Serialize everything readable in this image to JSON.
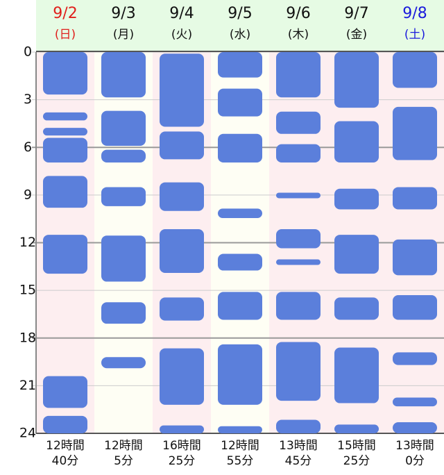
{
  "chart_data": {
    "type": "range",
    "ylim": [
      0,
      24
    ],
    "y_inverted": true,
    "yticks": [
      0,
      3,
      6,
      9,
      12,
      15,
      18,
      21,
      24
    ],
    "major_yticks": [
      6,
      12,
      18
    ],
    "bar_color": "#5b7fdb",
    "header_color": "#e6fbe4",
    "days": [
      {
        "date": "9/2",
        "weekday": "(日)",
        "label_color": "#e0201c",
        "background": "#fdeef0",
        "total": [
          "12時間",
          "40分"
        ],
        "sleep": [
          [
            0,
            2.67
          ],
          [
            3.8,
            4.3
          ],
          [
            4.77,
            5.25
          ],
          [
            5.4,
            6.95
          ],
          [
            7.8,
            9.8
          ],
          [
            11.5,
            13.95
          ],
          [
            20.4,
            22.4
          ],
          [
            22.9,
            24
          ]
        ]
      },
      {
        "date": "9/3",
        "weekday": "(月)",
        "label_color": "#111111",
        "background": "#fefef4",
        "total": [
          "12時間",
          "5分"
        ],
        "sleep": [
          [
            0,
            2.85
          ],
          [
            3.7,
            5.9
          ],
          [
            6.15,
            6.95
          ],
          [
            8.5,
            9.7
          ],
          [
            11.55,
            14.45
          ],
          [
            15.75,
            17.1
          ],
          [
            19.2,
            19.9
          ]
        ]
      },
      {
        "date": "9/4",
        "weekday": "(火)",
        "label_color": "#111111",
        "background": "#fdeef0",
        "total": [
          "16時間",
          "25分"
        ],
        "sleep": [
          [
            0.1,
            4.7
          ],
          [
            5.0,
            6.75
          ],
          [
            8.2,
            10.0
          ],
          [
            11.15,
            13.9
          ],
          [
            15.45,
            16.9
          ],
          [
            18.65,
            22.2
          ],
          [
            23.5,
            24
          ]
        ]
      },
      {
        "date": "9/5",
        "weekday": "(水)",
        "label_color": "#111111",
        "background": "#fefef4",
        "total": [
          "12時間",
          "55分"
        ],
        "sleep": [
          [
            0,
            1.6
          ],
          [
            2.3,
            4.05
          ],
          [
            5.15,
            6.95
          ],
          [
            9.85,
            10.45
          ],
          [
            12.7,
            13.75
          ],
          [
            15.1,
            16.85
          ],
          [
            18.4,
            22.2
          ],
          [
            23.55,
            24
          ]
        ]
      },
      {
        "date": "9/6",
        "weekday": "(木)",
        "label_color": "#111111",
        "background": "#fdeef0",
        "total": [
          "13時間",
          "45分"
        ],
        "sleep": [
          [
            0,
            2.85
          ],
          [
            3.75,
            5.15
          ],
          [
            5.8,
            6.95
          ],
          [
            8.85,
            9.2
          ],
          [
            11.15,
            12.35
          ],
          [
            13.05,
            13.4
          ],
          [
            15.1,
            16.85
          ],
          [
            18.25,
            21.95
          ],
          [
            23.15,
            24
          ]
        ]
      },
      {
        "date": "9/7",
        "weekday": "(金)",
        "label_color": "#111111",
        "background": "#fdeef0",
        "total": [
          "15時間",
          "25分"
        ],
        "sleep": [
          [
            0,
            3.5
          ],
          [
            4.35,
            6.95
          ],
          [
            8.6,
            9.9
          ],
          [
            11.5,
            13.95
          ],
          [
            15.45,
            16.85
          ],
          [
            18.6,
            22.1
          ],
          [
            23.45,
            24
          ]
        ]
      },
      {
        "date": "9/8",
        "weekday": "(土)",
        "label_color": "#1a1adc",
        "background": "#fdeef0",
        "total": [
          "13時間",
          "0分"
        ],
        "sleep": [
          [
            0,
            2.25
          ],
          [
            3.45,
            6.8
          ],
          [
            8.5,
            9.9
          ],
          [
            11.8,
            14.05
          ],
          [
            15.3,
            16.85
          ],
          [
            18.9,
            19.7
          ],
          [
            21.75,
            22.3
          ],
          [
            23.3,
            24
          ]
        ]
      }
    ]
  }
}
